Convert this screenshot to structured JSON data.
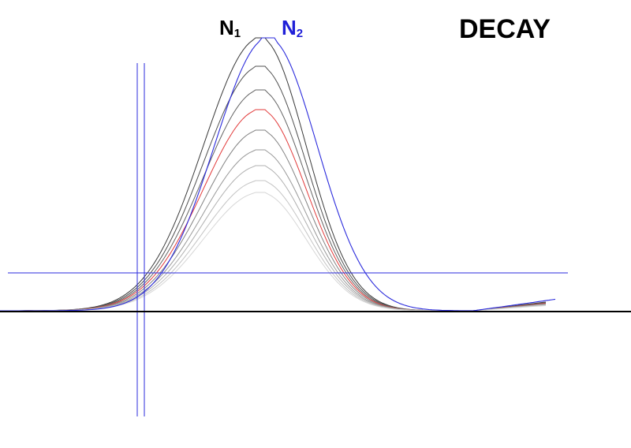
{
  "title": "DECAY",
  "labels": {
    "n1": {
      "letter": "N",
      "sub": "1"
    },
    "n2": {
      "letter": "N",
      "sub": "2"
    }
  },
  "colors": {
    "background": "#ffffff",
    "baseline": "#000000",
    "n1_curves": "#404040",
    "n2_curve": "#2b2bdc",
    "highlight_curve": "#e03030",
    "guides": "#2b2bdc"
  },
  "decay_curves": {
    "count": 9,
    "highlight_index": 3,
    "gray_levels": [
      "#3a3a3a",
      "#505050",
      "#646464",
      "#e23a3a",
      "#828282",
      "#999999",
      "#b0b0b0",
      "#c4c4c4",
      "#d6d6d6"
    ]
  }
}
